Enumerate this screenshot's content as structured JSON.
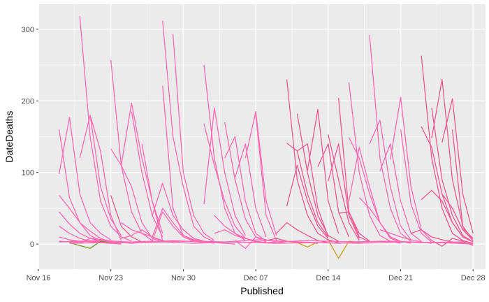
{
  "chart_data": {
    "type": "line",
    "xlabel": "Published",
    "ylabel": "DateDeaths",
    "x_ticks": [
      {
        "label": "Nov 16",
        "value": 0
      },
      {
        "label": "Nov 23",
        "value": 7
      },
      {
        "label": "Nov 30",
        "value": 14
      },
      {
        "label": "Dec 07",
        "value": 21
      },
      {
        "label": "Dec 14",
        "value": 28
      },
      {
        "label": "Dec 21",
        "value": 35
      },
      {
        "label": "Dec 28",
        "value": 42
      }
    ],
    "y_ticks": [
      0,
      100,
      200,
      300
    ],
    "xlim": [
      0,
      43.2
    ],
    "ylim": [
      -35,
      335
    ],
    "grid": true,
    "legend": "none",
    "colors": {
      "panel": "#EBEBEB",
      "grid": "#FFFFFF",
      "main": "#FF69B4",
      "alt1": "#F0578F",
      "alt2": "#6B9A1A",
      "alt3": "#C8A01E"
    },
    "series": [
      {
        "color": "main",
        "x": [
          2,
          3,
          4,
          5,
          6
        ],
        "y": [
          160,
          65,
          30,
          12,
          5
        ]
      },
      {
        "color": "main",
        "x": [
          2,
          3,
          4,
          5,
          6,
          7
        ],
        "y": [
          98,
          177,
          70,
          30,
          15,
          6
        ]
      },
      {
        "color": "main",
        "x": [
          4,
          5,
          6,
          7,
          8,
          9
        ],
        "y": [
          318,
          150,
          60,
          25,
          10,
          4
        ]
      },
      {
        "color": "main",
        "x": [
          4,
          5,
          6,
          7,
          8
        ],
        "y": [
          120,
          180,
          80,
          35,
          12
        ]
      },
      {
        "color": "main",
        "x": [
          5,
          6,
          7,
          8
        ],
        "y": [
          180,
          130,
          40,
          5
        ]
      },
      {
        "color": "main",
        "x": [
          2,
          3,
          4,
          5,
          6,
          7
        ],
        "y": [
          68,
          50,
          30,
          18,
          8,
          3
        ]
      },
      {
        "color": "main",
        "x": [
          2,
          3,
          4,
          5,
          6
        ],
        "y": [
          45,
          28,
          15,
          8,
          4
        ]
      },
      {
        "color": "main",
        "x": [
          2,
          3,
          4,
          5,
          6,
          7
        ],
        "y": [
          25,
          15,
          8,
          4,
          2,
          1
        ]
      },
      {
        "color": "main",
        "x": [
          2,
          3,
          4,
          5,
          6,
          7,
          8
        ],
        "y": [
          10,
          6,
          4,
          3,
          2,
          1,
          0
        ]
      },
      {
        "color": "main",
        "x": [
          2,
          3,
          4,
          5,
          6,
          7,
          8
        ],
        "y": [
          4,
          3,
          2,
          5,
          3,
          2,
          1
        ]
      },
      {
        "color": "main",
        "x": [
          3,
          4,
          5,
          6,
          7,
          8,
          9
        ],
        "y": [
          6,
          2,
          8,
          4,
          3,
          2,
          1
        ]
      },
      {
        "color": "alt2",
        "x": [
          3,
          4,
          5,
          6,
          7
        ],
        "y": [
          2,
          -2,
          -6,
          4,
          2
        ]
      },
      {
        "color": "alt1",
        "x": [
          7,
          8,
          9,
          10
        ],
        "y": [
          68,
          25,
          10,
          3
        ]
      },
      {
        "color": "main",
        "x": [
          7,
          8,
          9,
          10,
          11
        ],
        "y": [
          257,
          110,
          45,
          15,
          5
        ]
      },
      {
        "color": "main",
        "x": [
          7,
          8,
          9,
          10,
          11,
          12
        ],
        "y": [
          133,
          110,
          80,
          30,
          8,
          3
        ]
      },
      {
        "color": "main",
        "x": [
          8,
          9,
          10,
          11,
          12
        ],
        "y": [
          110,
          197,
          120,
          60,
          15
        ]
      },
      {
        "color": "main",
        "x": [
          9,
          10,
          11,
          12
        ],
        "y": [
          185,
          100,
          40,
          10
        ]
      },
      {
        "color": "main",
        "x": [
          10,
          11,
          12
        ],
        "y": [
          140,
          60,
          5
        ]
      },
      {
        "color": "main",
        "x": [
          8,
          9,
          10,
          11,
          12,
          13
        ],
        "y": [
          30,
          20,
          15,
          10,
          5,
          2
        ]
      },
      {
        "color": "main",
        "x": [
          8,
          9,
          10,
          11,
          12
        ],
        "y": [
          8,
          12,
          20,
          10,
          4
        ]
      },
      {
        "color": "main",
        "x": [
          12,
          13,
          14,
          15,
          16
        ],
        "y": [
          221,
          50,
          12,
          5,
          2
        ]
      },
      {
        "color": "main",
        "x": [
          12,
          13,
          14,
          15,
          16,
          17
        ],
        "y": [
          312,
          150,
          80,
          25,
          10,
          3
        ]
      },
      {
        "color": "main",
        "x": [
          13,
          14,
          15,
          16,
          17
        ],
        "y": [
          293,
          100,
          40,
          15,
          5
        ]
      },
      {
        "color": "main",
        "x": [
          11,
          12,
          13,
          14,
          15,
          16
        ],
        "y": [
          40,
          85,
          40,
          20,
          8,
          3
        ]
      },
      {
        "color": "main",
        "x": [
          11,
          12,
          13,
          14,
          15,
          16,
          17
        ],
        "y": [
          10,
          50,
          30,
          12,
          6,
          3,
          1
        ]
      },
      {
        "color": "main",
        "x": [
          10,
          11,
          12,
          13,
          14,
          15,
          16
        ],
        "y": [
          2,
          4,
          45,
          25,
          10,
          4,
          2
        ]
      },
      {
        "color": "main",
        "x": [
          14,
          15,
          16,
          17,
          18,
          19
        ],
        "y": [
          20,
          8,
          4,
          2,
          1,
          0
        ]
      },
      {
        "color": "main",
        "x": [
          16,
          17,
          18,
          19,
          20
        ],
        "y": [
          250,
          120,
          50,
          15,
          5
        ]
      },
      {
        "color": "main",
        "x": [
          16,
          17,
          18,
          19,
          20,
          21
        ],
        "y": [
          168,
          110,
          60,
          25,
          8,
          3
        ]
      },
      {
        "color": "main",
        "x": [
          16,
          17,
          18,
          19,
          20
        ],
        "y": [
          56,
          190,
          100,
          40,
          12
        ]
      },
      {
        "color": "main",
        "x": [
          18,
          19,
          20,
          21,
          22
        ],
        "y": [
          170,
          90,
          35,
          10,
          3
        ]
      },
      {
        "color": "main",
        "x": [
          18,
          19,
          20,
          21,
          22
        ],
        "y": [
          120,
          150,
          60,
          15,
          4
        ]
      },
      {
        "color": "main",
        "x": [
          19,
          20,
          21,
          22
        ],
        "y": [
          93,
          140,
          50,
          10
        ]
      },
      {
        "color": "main",
        "x": [
          20,
          21,
          22,
          23
        ],
        "y": [
          120,
          185,
          60,
          12
        ]
      },
      {
        "color": "main",
        "x": [
          21,
          22,
          23
        ],
        "y": [
          180,
          40,
          5
        ]
      },
      {
        "color": "main",
        "x": [
          17,
          18,
          19,
          20,
          21,
          22,
          23
        ],
        "y": [
          40,
          25,
          15,
          8,
          4,
          2,
          1
        ]
      },
      {
        "color": "main",
        "x": [
          17,
          18,
          19,
          20,
          21,
          22
        ],
        "y": [
          15,
          20,
          12,
          8,
          4,
          2
        ]
      },
      {
        "color": "main",
        "x": [
          19,
          20,
          21,
          22,
          23,
          24
        ],
        "y": [
          5,
          -6,
          10,
          6,
          3,
          1
        ]
      },
      {
        "color": "alt1",
        "x": [
          24,
          25,
          26,
          27,
          28,
          29
        ],
        "y": [
          230,
          90,
          40,
          15,
          6,
          2
        ]
      },
      {
        "color": "alt1",
        "x": [
          24,
          25,
          26,
          27,
          28
        ],
        "y": [
          141,
          130,
          70,
          30,
          10
        ]
      },
      {
        "color": "alt1",
        "x": [
          24,
          25,
          26,
          27,
          28
        ],
        "y": [
          53,
          110,
          60,
          25,
          8
        ]
      },
      {
        "color": "alt1",
        "x": [
          25,
          26,
          27,
          28,
          29
        ],
        "y": [
          182,
          100,
          40,
          12,
          4
        ]
      },
      {
        "color": "alt1",
        "x": [
          25,
          26,
          27,
          28
        ],
        "y": [
          130,
          140,
          50,
          10
        ]
      },
      {
        "color": "alt1",
        "x": [
          26,
          27,
          28,
          29
        ],
        "y": [
          103,
          188,
          60,
          15
        ]
      },
      {
        "color": "alt1",
        "x": [
          27,
          28,
          29,
          30
        ],
        "y": [
          108,
          140,
          45,
          10
        ]
      },
      {
        "color": "alt1",
        "x": [
          28,
          29,
          30,
          31
        ],
        "y": [
          153,
          90,
          30,
          5
        ]
      },
      {
        "color": "alt1",
        "x": [
          28,
          29,
          30,
          31
        ],
        "y": [
          88,
          140,
          40,
          8
        ]
      },
      {
        "color": "alt1",
        "x": [
          29,
          30,
          31,
          32
        ],
        "y": [
          204,
          45,
          10,
          3
        ]
      },
      {
        "color": "alt1",
        "x": [
          29,
          30,
          31,
          32
        ],
        "y": [
          43,
          45,
          15,
          4
        ]
      },
      {
        "color": "alt1",
        "x": [
          23,
          24,
          25,
          26,
          27,
          28
        ],
        "y": [
          15,
          30,
          20,
          12,
          5,
          2
        ]
      },
      {
        "color": "alt1",
        "x": [
          22,
          23,
          24,
          25,
          26,
          27
        ],
        "y": [
          5,
          8,
          4,
          3,
          2,
          1
        ]
      },
      {
        "color": "alt3",
        "x": [
          24,
          25,
          26,
          27
        ],
        "y": [
          4,
          2,
          -4,
          3
        ]
      },
      {
        "color": "alt3",
        "x": [
          28,
          29,
          30,
          31
        ],
        "y": [
          6,
          -20,
          4,
          2
        ]
      },
      {
        "color": "main",
        "x": [
          30,
          31,
          32,
          33,
          34,
          35
        ],
        "y": [
          226,
          100,
          40,
          12,
          4,
          1
        ]
      },
      {
        "color": "main",
        "x": [
          30,
          31,
          32,
          33,
          34,
          35,
          36
        ],
        "y": [
          149,
          120,
          70,
          30,
          10,
          4,
          1
        ]
      },
      {
        "color": "main",
        "x": [
          30,
          31,
          32,
          33,
          34,
          35
        ],
        "y": [
          60,
          135,
          80,
          30,
          8,
          3
        ]
      },
      {
        "color": "main",
        "x": [
          31,
          32,
          33,
          34,
          35
        ],
        "y": [
          65,
          50,
          30,
          10,
          3
        ]
      },
      {
        "color": "main",
        "x": [
          32,
          33,
          34,
          35,
          36
        ],
        "y": [
          292,
          120,
          50,
          15,
          4
        ]
      },
      {
        "color": "main",
        "x": [
          32,
          33,
          34,
          35,
          36
        ],
        "y": [
          140,
          173,
          80,
          25,
          6
        ]
      },
      {
        "color": "main",
        "x": [
          33,
          34,
          35,
          36,
          37
        ],
        "y": [
          102,
          140,
          60,
          15,
          4
        ]
      },
      {
        "color": "main",
        "x": [
          34,
          35,
          36,
          37,
          38
        ],
        "y": [
          118,
          205,
          80,
          20,
          5
        ]
      },
      {
        "color": "main",
        "x": [
          35,
          36,
          37,
          38
        ],
        "y": [
          160,
          56,
          15,
          3
        ]
      },
      {
        "color": "main",
        "x": [
          33,
          34,
          35,
          36,
          37,
          38
        ],
        "y": [
          20,
          15,
          10,
          6,
          3,
          1
        ]
      },
      {
        "color": "alt1",
        "x": [
          37,
          38,
          39,
          40,
          41,
          42
        ],
        "y": [
          263,
          120,
          50,
          15,
          5,
          1
        ]
      },
      {
        "color": "alt1",
        "x": [
          37,
          38,
          39,
          40,
          41,
          42
        ],
        "y": [
          164,
          135,
          70,
          30,
          10,
          3
        ]
      },
      {
        "color": "alt1",
        "x": [
          37,
          38,
          39,
          40,
          41,
          42
        ],
        "y": [
          62,
          75,
          60,
          30,
          10,
          3
        ]
      },
      {
        "color": "alt1",
        "x": [
          38,
          39,
          40,
          41,
          42
        ],
        "y": [
          190,
          90,
          40,
          12,
          3
        ]
      },
      {
        "color": "alt1",
        "x": [
          38,
          39,
          40,
          41,
          42
        ],
        "y": [
          148,
          230,
          90,
          25,
          5
        ]
      },
      {
        "color": "alt1",
        "x": [
          39,
          40,
          41,
          42
        ],
        "y": [
          142,
          203,
          70,
          15
        ]
      },
      {
        "color": "alt1",
        "x": [
          40,
          41,
          42
        ],
        "y": [
          160,
          25,
          5
        ]
      },
      {
        "color": "alt1",
        "x": [
          39,
          40,
          41,
          42
        ],
        "y": [
          70,
          50,
          20,
          5
        ]
      },
      {
        "color": "alt1",
        "x": [
          41,
          42
        ],
        "y": [
          22,
          8
        ]
      },
      {
        "color": "alt1",
        "x": [
          36,
          37,
          38,
          39,
          40,
          41,
          42
        ],
        "y": [
          15,
          20,
          10,
          6,
          3,
          2,
          1
        ]
      },
      {
        "color": "alt1",
        "x": [
          38,
          39,
          40,
          41,
          42
        ],
        "y": [
          5,
          -3,
          8,
          4,
          -2
        ]
      },
      {
        "color": "main",
        "x": [
          2,
          6,
          10,
          14,
          18,
          22,
          26,
          30,
          34,
          38,
          42
        ],
        "y": [
          3,
          5,
          2,
          4,
          3,
          2,
          5,
          3,
          4,
          2,
          1
        ]
      },
      {
        "color": "main",
        "x": [
          3,
          7,
          11,
          15,
          19,
          23,
          27,
          31,
          35,
          39,
          42
        ],
        "y": [
          1,
          2,
          4,
          1,
          3,
          1,
          2,
          1,
          3,
          2,
          0
        ]
      },
      {
        "color": "main",
        "x": [
          5,
          9,
          13,
          17,
          21,
          25,
          29,
          33,
          37,
          41
        ],
        "y": [
          8,
          1,
          5,
          2,
          6,
          3,
          1,
          4,
          2,
          3
        ]
      }
    ]
  }
}
